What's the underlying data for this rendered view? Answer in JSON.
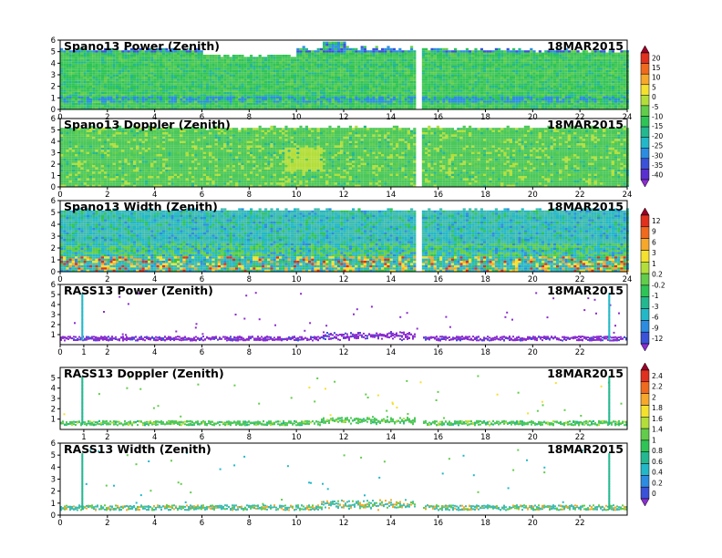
{
  "chart_data": [
    {
      "type": "heatmap",
      "title": "Spano13 Power (Zenith)",
      "date": "18MAR2015",
      "x_ticks": [
        "0",
        "2",
        "4",
        "6",
        "8",
        "10",
        "12",
        "14",
        "16",
        "18",
        "20",
        "22",
        "24"
      ],
      "y_ticks": [
        "0",
        "1",
        "2",
        "3",
        "4",
        "5",
        "6"
      ],
      "xlim": [
        0,
        24
      ],
      "ylim": [
        0,
        6
      ],
      "data_gap_hours": [
        15.0,
        15.3
      ],
      "echo_top_km": [
        {
          "hour": 0,
          "top": 5.3
        },
        {
          "hour": 4,
          "top": 5.3
        },
        {
          "hour": 6,
          "top": 4.7
        },
        {
          "hour": 8,
          "top": 4.8
        },
        {
          "hour": 10,
          "top": 5.4
        },
        {
          "hour": 11,
          "top": 6.0
        },
        {
          "hour": 12,
          "top": 5.4
        },
        {
          "hour": 15,
          "top": 5.3
        },
        {
          "hour": 20,
          "top": 5.2
        },
        {
          "hour": 24,
          "top": 5.1
        }
      ],
      "colorbar": {
        "labels": [
          "20",
          "15",
          "10",
          "5",
          "0",
          "-5",
          "-10",
          "-15",
          "-20",
          "-25",
          "-30",
          "-35",
          "-40"
        ],
        "colors": [
          "#9a0028",
          "#e0301e",
          "#f06a1d",
          "#f7a82a",
          "#f4e12e",
          "#b3de3a",
          "#61cd4a",
          "#2fc456",
          "#24b890",
          "#23b8c8",
          "#2c8de0",
          "#3a52d8",
          "#5a2fd0",
          "#8a2dcf"
        ]
      },
      "dominant_color": "#46c85a"
    },
    {
      "type": "heatmap",
      "title": "Spano13 Doppler (Zenith)",
      "date": "18MAR2015",
      "x_ticks": [
        "0",
        "2",
        "4",
        "6",
        "8",
        "10",
        "12",
        "14",
        "16",
        "18",
        "20",
        "22",
        "24"
      ],
      "y_ticks": [
        "0",
        "1",
        "2",
        "3",
        "4",
        "5",
        "6"
      ],
      "xlim": [
        0,
        24
      ],
      "ylim": [
        0,
        6
      ],
      "data_gap_hours": [
        15.0,
        15.3
      ],
      "dominant_color": "#4cc85a"
    },
    {
      "type": "heatmap",
      "title": "Spano13 Width (Zenith)",
      "date": "18MAR2015",
      "x_ticks": [
        "0",
        "2",
        "4",
        "6",
        "8",
        "10",
        "12",
        "14",
        "16",
        "18",
        "20",
        "22",
        "24"
      ],
      "y_ticks": [
        "0",
        "1",
        "2",
        "3",
        "4",
        "5",
        "6"
      ],
      "xlim": [
        0,
        24
      ],
      "ylim": [
        0,
        6
      ],
      "data_gap_hours": [
        15.0,
        15.3
      ],
      "colorbar": {
        "labels": [
          "12",
          "9",
          "6",
          "3",
          "1",
          "0.2",
          "-0.2",
          "-1",
          "-3",
          "-6",
          "-9",
          "-12"
        ],
        "colors": [
          "#9a0028",
          "#e0301e",
          "#f06a1d",
          "#f7a82a",
          "#f4e12e",
          "#b3de3a",
          "#61cd4a",
          "#2fc456",
          "#24b890",
          "#23b8c8",
          "#2c8de0",
          "#3a52d8",
          "#8a2dcf"
        ]
      },
      "dominant_color": "#3fbcb0"
    },
    {
      "type": "scatter",
      "title": "RASS13 Power (Zenith)",
      "date": "18MAR2015",
      "x_ticks": [
        "0",
        "1",
        "2",
        "4",
        "6",
        "8",
        "10",
        "12",
        "14",
        "16",
        "18",
        "20",
        "22"
      ],
      "y_ticks": [
        "1",
        "2",
        "3",
        "4",
        "5",
        "6"
      ],
      "xlim": [
        0,
        24
      ],
      "ylim": [
        0,
        6
      ],
      "band_km": [
        0.5,
        0.9
      ],
      "spikes_hour": [
        0.9,
        23.2
      ],
      "dominant_color": "#8a2dcf"
    },
    {
      "type": "scatter",
      "title": "RASS13 Doppler (Zenith)",
      "date": "18MAR2015",
      "x_ticks": [
        "1",
        "2",
        "4",
        "6",
        "8",
        "10",
        "12",
        "14",
        "16",
        "18",
        "20",
        "22"
      ],
      "y_ticks": [
        "1",
        "2",
        "3",
        "4",
        "5"
      ],
      "xlim": [
        0,
        24
      ],
      "ylim": [
        0,
        6
      ],
      "band_km": [
        0.5,
        0.9
      ],
      "spikes_hour": [
        0.9,
        23.2
      ],
      "colorbar": {
        "labels": [
          "2.4",
          "2.2",
          "2",
          "1.8",
          "1.6",
          "1.4",
          "1",
          "0.8",
          "0.6",
          "0.4",
          "0.2",
          "0"
        ],
        "colors": [
          "#9a0028",
          "#e0301e",
          "#f06a1d",
          "#f7a82a",
          "#f4e12e",
          "#b3de3a",
          "#61cd4a",
          "#2fc456",
          "#24b890",
          "#23b8c8",
          "#2c8de0",
          "#3a52d8",
          "#8a2dcf"
        ]
      },
      "dominant_color": "#4cc85a"
    },
    {
      "type": "scatter",
      "title": "RASS13 Width (Zenith)",
      "date": "18MAR2015",
      "x_ticks": [
        "0",
        "2",
        "4",
        "6",
        "8",
        "10",
        "12",
        "14",
        "16",
        "18",
        "20",
        "22"
      ],
      "y_ticks": [
        "0",
        "1",
        "2",
        "3",
        "4",
        "5",
        "6"
      ],
      "xlim": [
        0,
        24
      ],
      "ylim": [
        0,
        6
      ],
      "band_km": [
        0.5,
        0.9
      ],
      "spikes_hour": [
        0.9,
        23.2
      ],
      "dominant_color": "#3fbcb0"
    }
  ]
}
